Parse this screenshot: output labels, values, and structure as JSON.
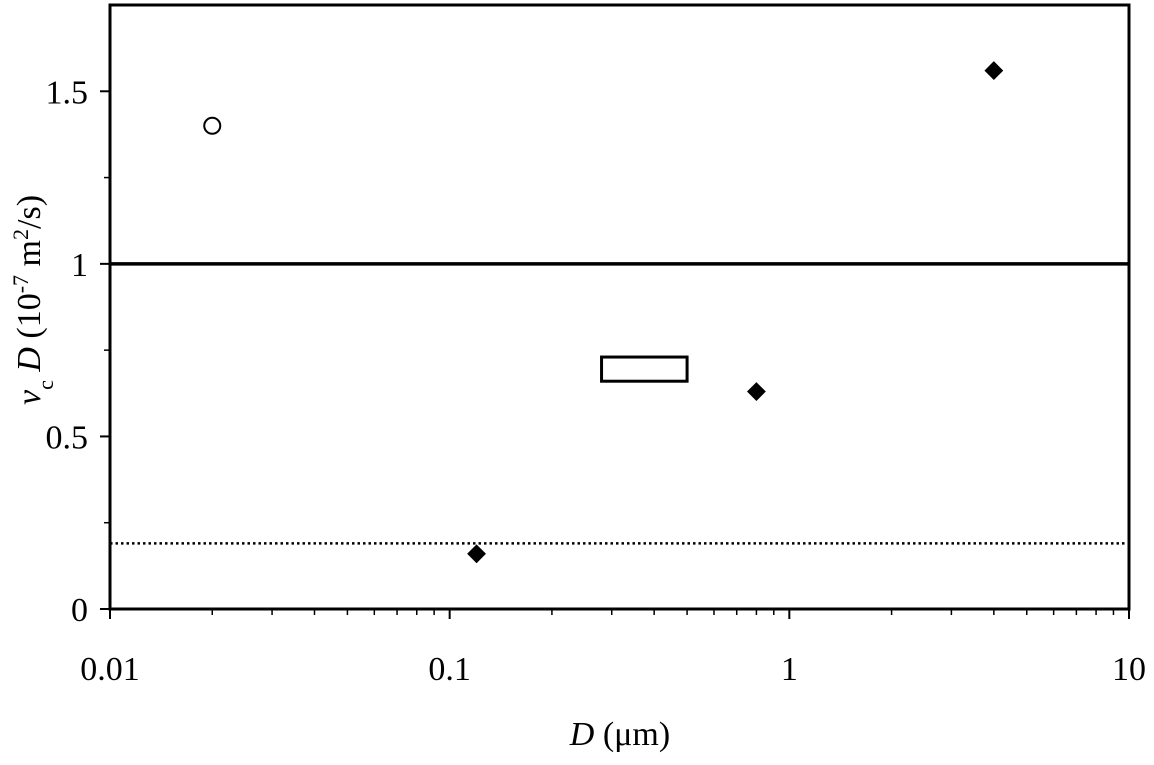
{
  "chart_data": {
    "type": "scatter",
    "x_label": {
      "parts": [
        {
          "text": "D",
          "style": "italic"
        },
        {
          "text": " (μm)",
          "style": "normal"
        }
      ]
    },
    "y_label": {
      "parts": [
        {
          "text": "v",
          "style": "italic"
        },
        {
          "text": "c",
          "style": "sub"
        },
        {
          "text": " D",
          "style": "italic"
        },
        {
          "text": " (10",
          "style": "normal"
        },
        {
          "text": "-7",
          "style": "sup"
        },
        {
          "text": " m",
          "style": "normal"
        },
        {
          "text": "2",
          "style": "sup"
        },
        {
          "text": "/s)",
          "style": "normal"
        }
      ]
    },
    "xscale": "log",
    "xlim": [
      0.01,
      10
    ],
    "xticks": [
      0.01,
      0.1,
      1,
      10
    ],
    "xminorticks": [
      0.02,
      0.03,
      0.04,
      0.05,
      0.06,
      0.07,
      0.08,
      0.09,
      0.2,
      0.3,
      0.4,
      0.5,
      0.6,
      0.7,
      0.8,
      0.9,
      2,
      3,
      4,
      5,
      6,
      7,
      8,
      9
    ],
    "ylim": [
      0,
      1.75
    ],
    "yticks": [
      0,
      0.5,
      1,
      1.5
    ],
    "yminorticks": [
      0.25,
      0.75,
      1.25
    ],
    "series": [
      {
        "marker": "circle",
        "filled": false,
        "color": "#000000",
        "x": [
          0.02
        ],
        "values": [
          1.4
        ]
      },
      {
        "marker": "diamond",
        "filled": true,
        "color": "#000000",
        "x": [
          0.12,
          0.8,
          4
        ],
        "values": [
          0.16,
          0.63,
          1.56
        ]
      }
    ],
    "ranges": [
      {
        "x": [
          0.28,
          0.5
        ],
        "y": [
          0.66,
          0.73
        ],
        "color": "#000000"
      }
    ],
    "hlines": [
      {
        "y": 1,
        "style": "solid",
        "color": "#000000"
      },
      {
        "y": 0.19,
        "style": "dotted",
        "color": "#000000"
      }
    ]
  }
}
